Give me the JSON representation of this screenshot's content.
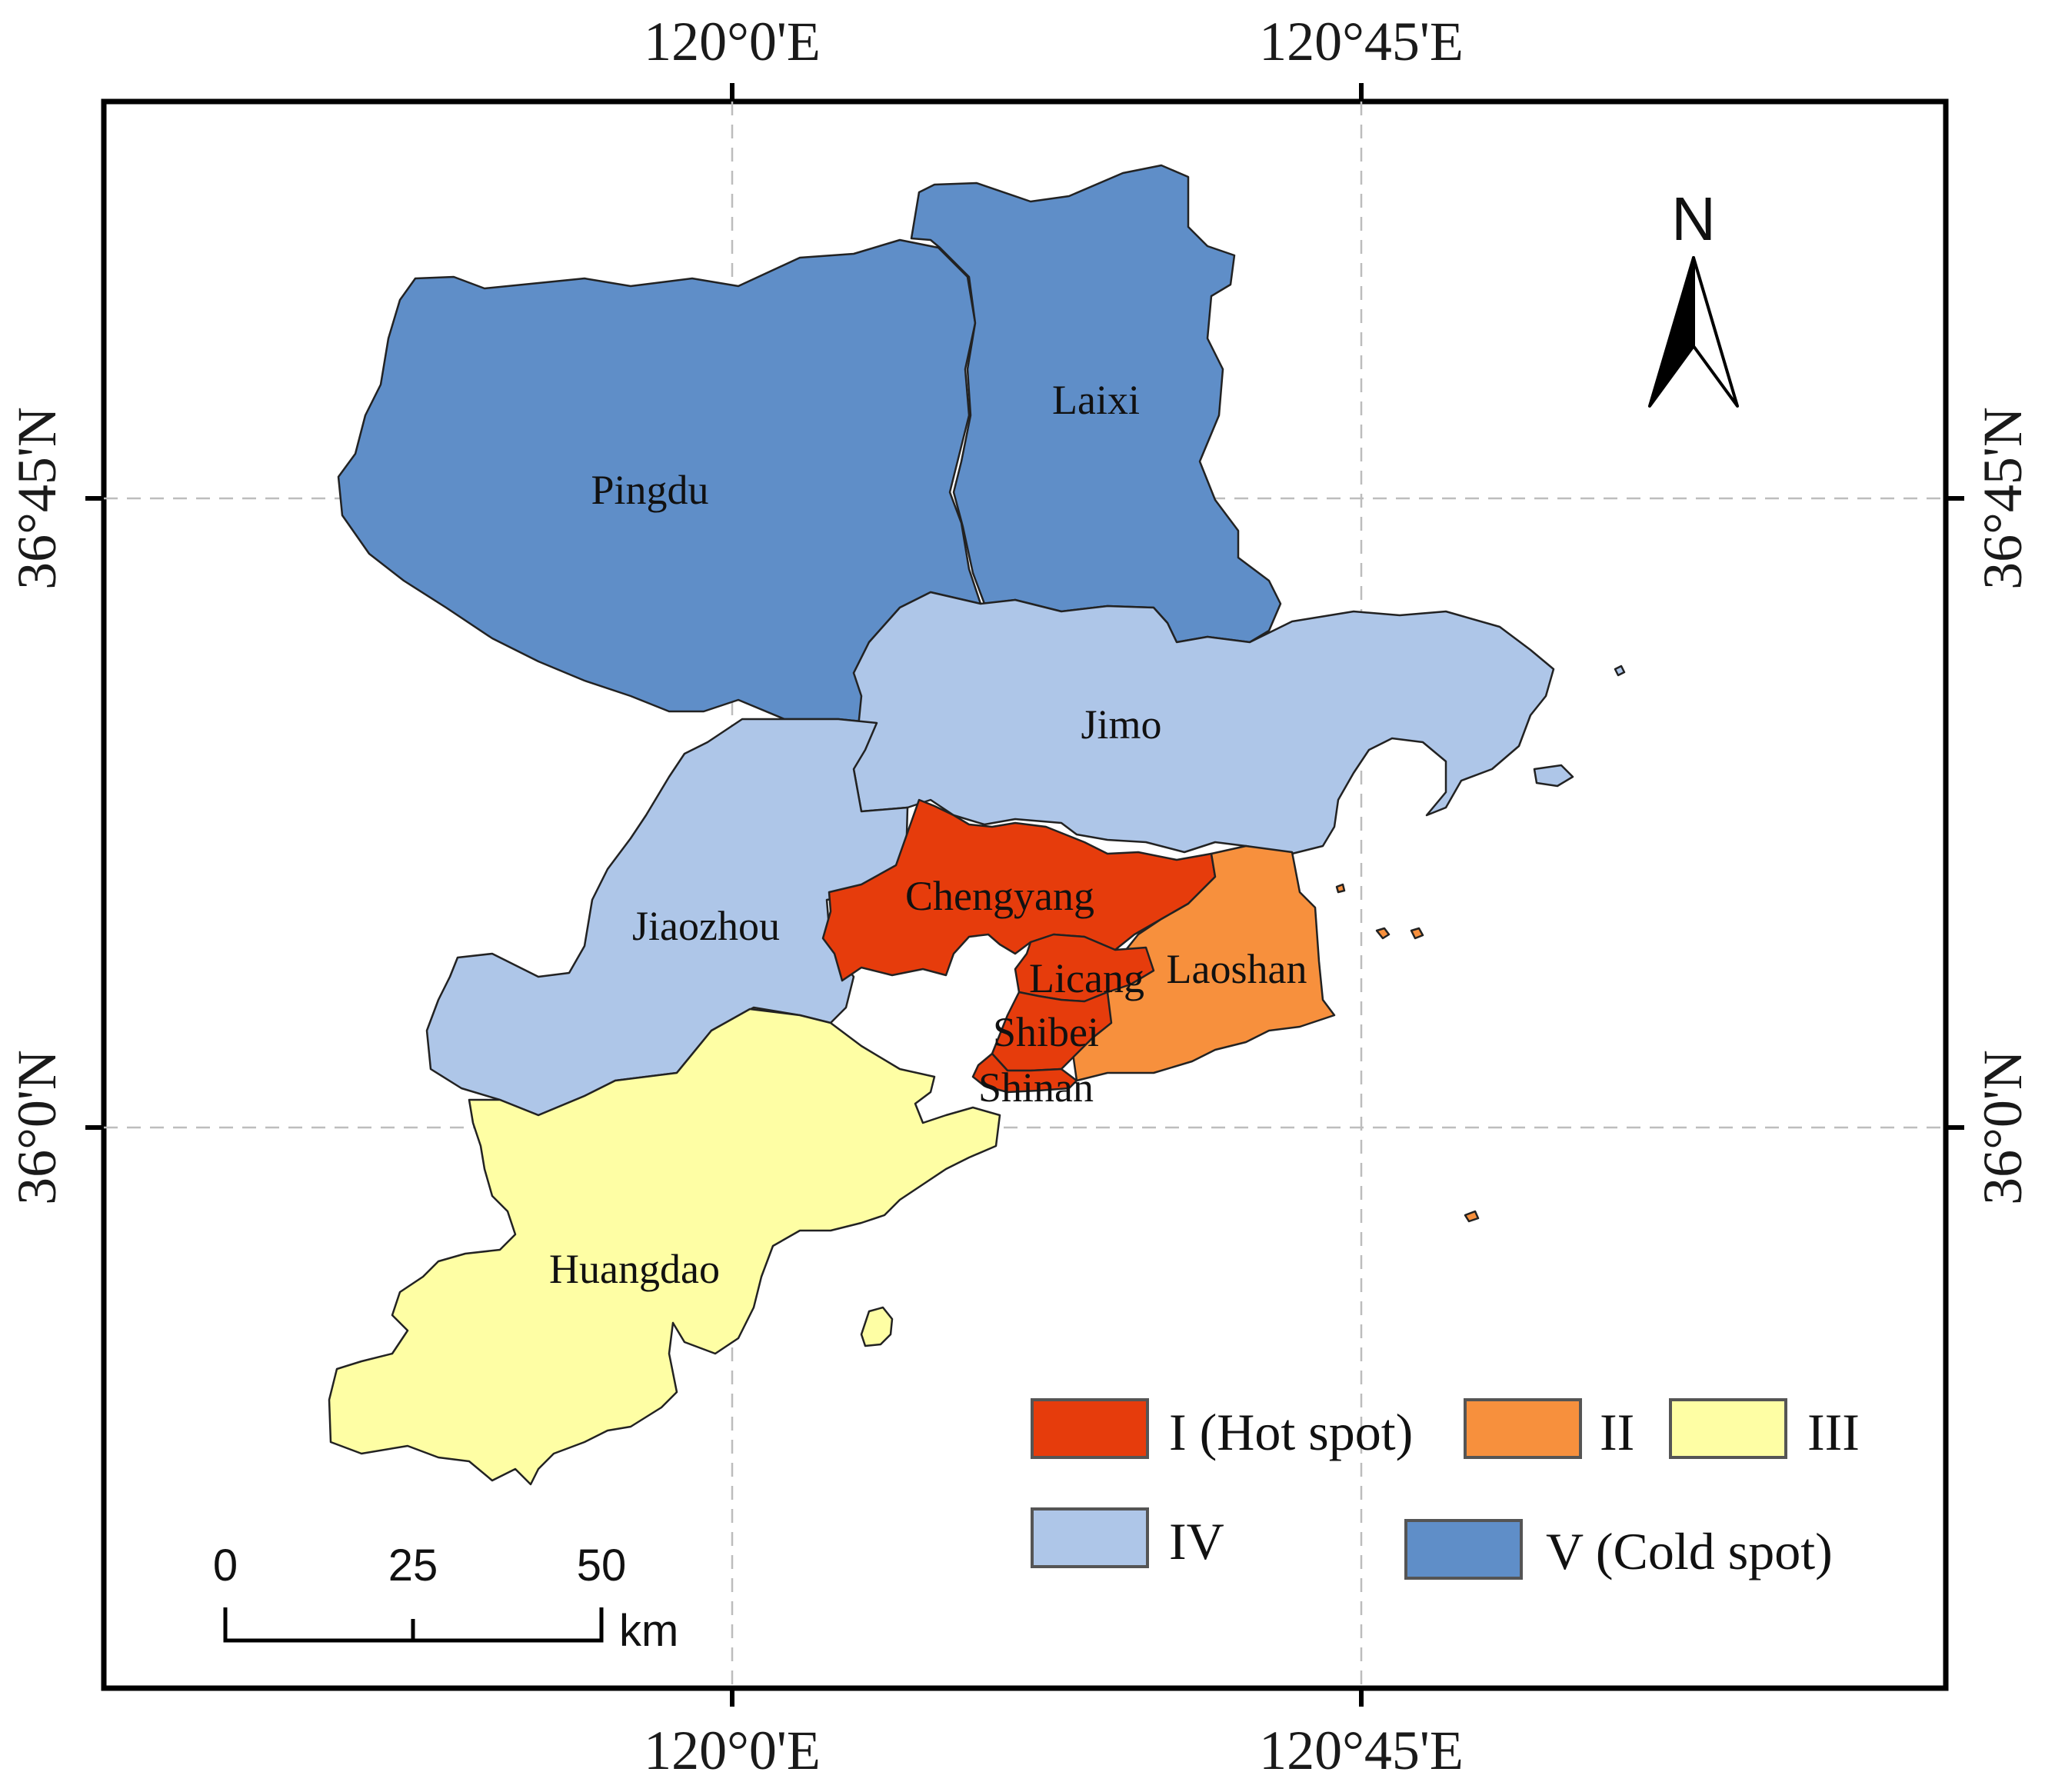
{
  "map": {
    "coordinates": {
      "lon_left": "120°0'E",
      "lon_right": "120°45'E",
      "lat_upper": "36°45'N",
      "lat_lower": "36°0'N"
    },
    "regions": [
      {
        "id": "pingdu",
        "label": "Pingdu",
        "class": "V"
      },
      {
        "id": "laixi",
        "label": "Laixi",
        "class": "V"
      },
      {
        "id": "jimo",
        "label": "Jimo",
        "class": "IV"
      },
      {
        "id": "jiaozhou",
        "label": "Jiaozhou",
        "class": "IV"
      },
      {
        "id": "chengyang",
        "label": "Chengyang",
        "class": "I"
      },
      {
        "id": "licang",
        "label": "Licang",
        "class": "I"
      },
      {
        "id": "shibei",
        "label": "Shibei",
        "class": "I"
      },
      {
        "id": "shinan",
        "label": "Shinan",
        "class": "I"
      },
      {
        "id": "laoshan",
        "label": "Laoshan",
        "class": "II"
      },
      {
        "id": "huangdao",
        "label": "Huangdao",
        "class": "III"
      }
    ],
    "legend": [
      {
        "class": "I",
        "label": "I (Hot spot)",
        "color": "#e63c0c"
      },
      {
        "class": "II",
        "label": "II",
        "color": "#f7903d"
      },
      {
        "class": "III",
        "label": "III",
        "color": "#fefea4"
      },
      {
        "class": "IV",
        "label": "IV",
        "color": "#aec6e8"
      },
      {
        "class": "V",
        "label": "V (Cold spot)",
        "color": "#5f8ec8"
      }
    ],
    "north_arrow": {
      "label": "N",
      "icon": "north-arrow-icon"
    },
    "scale_bar": {
      "ticks": [
        "0",
        "25",
        "50"
      ],
      "unit": "km"
    }
  }
}
